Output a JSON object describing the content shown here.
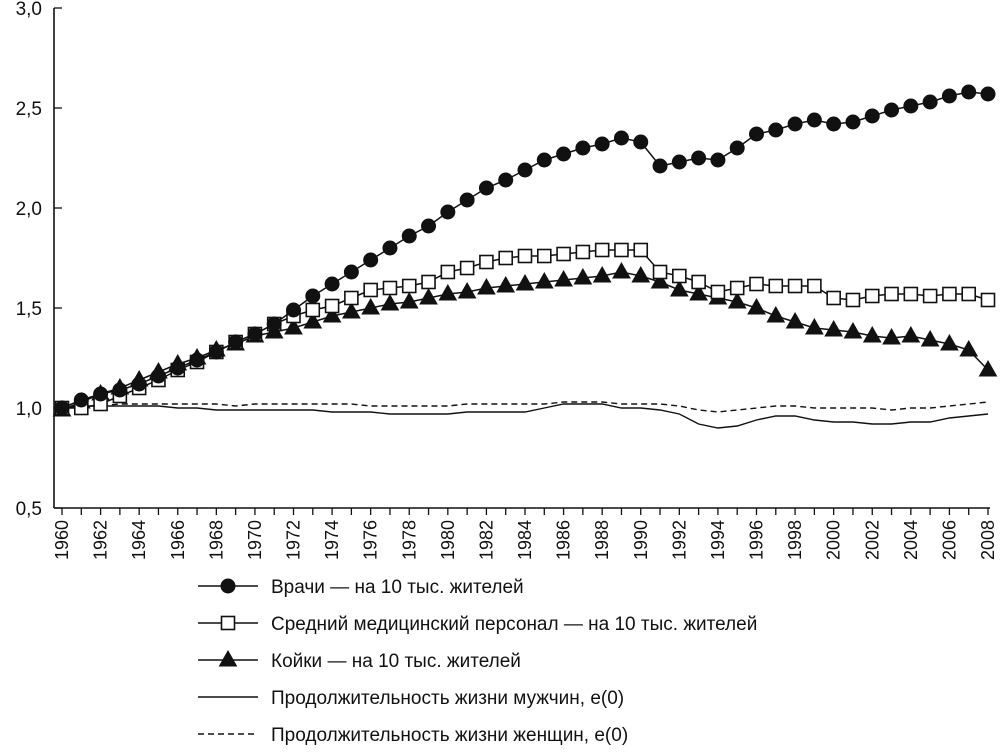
{
  "chart_data": {
    "type": "line",
    "x": [
      1960,
      1961,
      1962,
      1963,
      1964,
      1965,
      1966,
      1967,
      1968,
      1969,
      1970,
      1971,
      1972,
      1973,
      1974,
      1975,
      1976,
      1977,
      1978,
      1979,
      1980,
      1981,
      1982,
      1983,
      1984,
      1985,
      1986,
      1987,
      1988,
      1989,
      1990,
      1991,
      1992,
      1993,
      1994,
      1995,
      1996,
      1997,
      1998,
      1999,
      2000,
      2001,
      2002,
      2003,
      2004,
      2005,
      2006,
      2007,
      2008
    ],
    "x_tick_labels": [
      "1960",
      "1962",
      "1964",
      "1966",
      "1968",
      "1970",
      "1972",
      "1974",
      "1976",
      "1978",
      "1980",
      "1982",
      "1984",
      "1986",
      "1988",
      "1990",
      "1992",
      "1994",
      "1996",
      "1998",
      "2000",
      "2002",
      "2004",
      "2006",
      "2008"
    ],
    "y_tick_labels": [
      "0,5",
      "1,0",
      "1,5",
      "2,0",
      "2,5",
      "3,0"
    ],
    "y_ticks": [
      0.5,
      1.0,
      1.5,
      2.0,
      2.5,
      3.0
    ],
    "ylim": [
      0.5,
      3.0
    ],
    "xlim": [
      1960,
      2008
    ],
    "grid": false,
    "legend_position": "bottom",
    "series": [
      {
        "name": "Врачи — на 10 тыс. жителей",
        "marker": "filled-circle",
        "line": "solid",
        "values": [
          1.0,
          1.04,
          1.07,
          1.09,
          1.12,
          1.16,
          1.2,
          1.24,
          1.28,
          1.33,
          1.37,
          1.42,
          1.49,
          1.56,
          1.62,
          1.68,
          1.74,
          1.8,
          1.86,
          1.91,
          1.98,
          2.04,
          2.1,
          2.14,
          2.19,
          2.24,
          2.27,
          2.3,
          2.32,
          2.35,
          2.33,
          2.21,
          2.23,
          2.25,
          2.24,
          2.3,
          2.37,
          2.39,
          2.42,
          2.44,
          2.42,
          2.43,
          2.46,
          2.49,
          2.51,
          2.53,
          2.56,
          2.58,
          2.57
        ]
      },
      {
        "name": "Средний медицинский персонал — на 10 тыс. жителей",
        "marker": "open-square",
        "line": "solid",
        "values": [
          1.0,
          1.0,
          1.02,
          1.06,
          1.1,
          1.14,
          1.19,
          1.23,
          1.28,
          1.33,
          1.37,
          1.42,
          1.46,
          1.49,
          1.51,
          1.55,
          1.59,
          1.6,
          1.61,
          1.63,
          1.68,
          1.7,
          1.73,
          1.75,
          1.76,
          1.76,
          1.77,
          1.78,
          1.79,
          1.79,
          1.79,
          1.68,
          1.66,
          1.63,
          1.58,
          1.6,
          1.62,
          1.61,
          1.61,
          1.61,
          1.55,
          1.54,
          1.56,
          1.57,
          1.57,
          1.56,
          1.57,
          1.57,
          1.54
        ]
      },
      {
        "name": "Койки — на 10 тыс. жителей",
        "marker": "filled-triangle",
        "line": "solid",
        "values": [
          0.99,
          1.03,
          1.07,
          1.1,
          1.14,
          1.18,
          1.22,
          1.25,
          1.29,
          1.32,
          1.36,
          1.38,
          1.4,
          1.43,
          1.46,
          1.48,
          1.5,
          1.52,
          1.53,
          1.55,
          1.57,
          1.58,
          1.6,
          1.61,
          1.62,
          1.63,
          1.64,
          1.65,
          1.66,
          1.68,
          1.66,
          1.63,
          1.59,
          1.57,
          1.55,
          1.53,
          1.5,
          1.46,
          1.43,
          1.4,
          1.39,
          1.38,
          1.36,
          1.35,
          1.36,
          1.34,
          1.32,
          1.29,
          1.19
        ]
      },
      {
        "name": "Продолжительность жизни мужчин, e(0)",
        "marker": "none",
        "line": "solid",
        "values": [
          1.0,
          1.01,
          1.01,
          1.01,
          1.01,
          1.01,
          1.0,
          1.0,
          0.99,
          0.99,
          0.99,
          0.99,
          0.99,
          0.99,
          0.98,
          0.98,
          0.98,
          0.97,
          0.97,
          0.97,
          0.97,
          0.98,
          0.98,
          0.98,
          0.98,
          1.0,
          1.02,
          1.02,
          1.02,
          1.0,
          1.0,
          0.99,
          0.97,
          0.92,
          0.9,
          0.91,
          0.94,
          0.96,
          0.96,
          0.94,
          0.93,
          0.93,
          0.92,
          0.92,
          0.93,
          0.93,
          0.95,
          0.96,
          0.97
        ]
      },
      {
        "name": "Продолжительность жизни женщин, e(0)",
        "marker": "none",
        "line": "dashed",
        "values": [
          1.0,
          1.01,
          1.01,
          1.02,
          1.02,
          1.02,
          1.02,
          1.02,
          1.02,
          1.01,
          1.02,
          1.02,
          1.02,
          1.02,
          1.02,
          1.02,
          1.01,
          1.01,
          1.01,
          1.01,
          1.01,
          1.02,
          1.02,
          1.02,
          1.02,
          1.02,
          1.03,
          1.03,
          1.03,
          1.02,
          1.02,
          1.02,
          1.01,
          0.99,
          0.98,
          0.99,
          1.0,
          1.01,
          1.01,
          1.0,
          1.0,
          1.0,
          1.0,
          0.99,
          1.0,
          1.0,
          1.01,
          1.02,
          1.03
        ]
      }
    ]
  }
}
